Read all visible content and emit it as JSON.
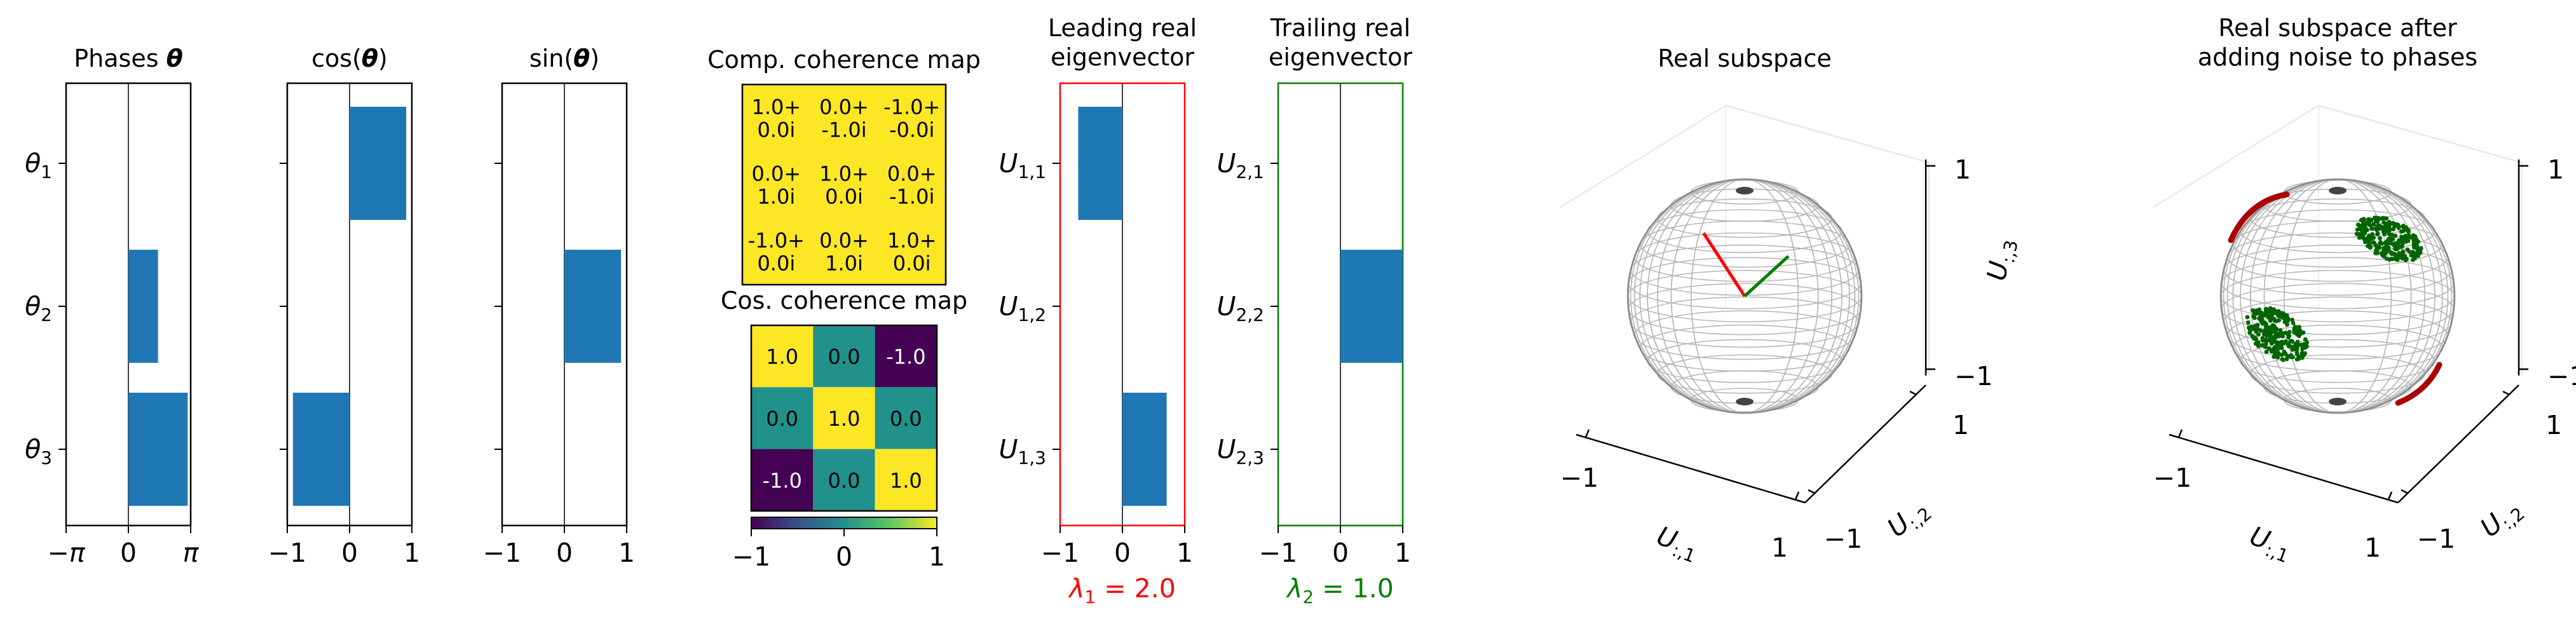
{
  "chart_data": [
    {
      "type": "bar",
      "orientation": "horizontal",
      "title": "Phases θ",
      "categories": [
        "θ1",
        "θ2",
        "θ3"
      ],
      "values": [
        0,
        1.57,
        3.14
      ],
      "xlim": [
        -3.3,
        3.3
      ],
      "xticks": [
        "−π",
        "0",
        "π"
      ]
    },
    {
      "type": "bar",
      "orientation": "horizontal",
      "title": "cos(θ)",
      "categories": [
        "θ1",
        "θ2",
        "θ3"
      ],
      "values": [
        1.0,
        0.0,
        -1.0
      ],
      "xlim": [
        -1.1,
        1.1
      ],
      "xticks": [
        "−1",
        "0",
        "1"
      ]
    },
    {
      "type": "bar",
      "orientation": "horizontal",
      "title": "sin(θ)",
      "categories": [
        "θ1",
        "θ2",
        "θ3"
      ],
      "values": [
        0.0,
        1.0,
        0.0
      ],
      "xlim": [
        -1.1,
        1.1
      ],
      "xticks": [
        "−1",
        "0",
        "1"
      ]
    },
    {
      "type": "table",
      "title": "Comp. coherence map",
      "cells": [
        [
          "1.0+\n0.0i",
          "0.0+\n-1.0i",
          "-1.0+\n-0.0i"
        ],
        [
          "0.0+\n1.0i",
          "1.0+\n0.0i",
          "0.0+\n-1.0i"
        ],
        [
          "-1.0+\n0.0i",
          "0.0+\n1.0i",
          "1.0+\n0.0i"
        ]
      ],
      "cell_color": "#fde725"
    },
    {
      "type": "heatmap",
      "title": "Cos. coherence map",
      "values": [
        [
          1.0,
          0.0,
          -1.0
        ],
        [
          0.0,
          1.0,
          0.0
        ],
        [
          -1.0,
          0.0,
          1.0
        ]
      ],
      "labels": [
        [
          "1.0",
          "0.0",
          "-1.0"
        ],
        [
          "0.0",
          "1.0",
          "0.0"
        ],
        [
          "-1.0",
          "0.0",
          "1.0"
        ]
      ],
      "colorbar": {
        "range": [
          -1,
          1
        ],
        "ticks": [
          "−1",
          "0",
          "1"
        ]
      }
    },
    {
      "type": "bar",
      "orientation": "horizontal",
      "title": "Leading real\neigenvector",
      "categories": [
        "U1,1",
        "U1,2",
        "U1,3"
      ],
      "values": [
        -0.71,
        0.0,
        0.71
      ],
      "xlim": [
        -1.0,
        1.0
      ],
      "xticks": [
        "−1",
        "0",
        "1"
      ],
      "frame_color": "#ff0000",
      "caption": "λ1 = 2.0"
    },
    {
      "type": "bar",
      "orientation": "horizontal",
      "title": "Trailing real\neigenvector",
      "categories": [
        "U2,1",
        "U2,2",
        "U2,3"
      ],
      "values": [
        0.0,
        1.0,
        0.0
      ],
      "xlim": [
        -1.0,
        1.0
      ],
      "xticks": [
        "−1",
        "0",
        "1"
      ],
      "frame_color": "#008000",
      "caption": "λ2 = 1.0"
    },
    {
      "type": "scatter",
      "title": "Real subspace",
      "axes": {
        "x": "U:,1",
        "y": "U:,2",
        "z": "U:,3"
      },
      "ticks": [
        "−1",
        "1"
      ],
      "vectors": [
        {
          "color": "#ff0000",
          "from": [
            0,
            0,
            0
          ],
          "to": [
            -0.71,
            0,
            0.71
          ]
        },
        {
          "color": "#008000",
          "from": [
            0,
            0,
            0
          ],
          "to": [
            0,
            1,
            0
          ]
        }
      ]
    },
    {
      "type": "scatter",
      "title": "Real subspace after\nadding noise to phases",
      "axes": {
        "x": "U:,1",
        "y": "U:,2",
        "z": "U:,3"
      },
      "ticks": [
        "−1",
        "1"
      ],
      "point_groups": [
        {
          "color": "#006400",
          "center": [
            0,
            1,
            0
          ],
          "spread": "small"
        },
        {
          "color": "#006400",
          "center": [
            0,
            -1,
            0
          ],
          "spread": "small"
        }
      ],
      "arc_groups": [
        {
          "color": "#aa0000",
          "center": [
            -0.71,
            0,
            0.71
          ]
        },
        {
          "color": "#aa0000",
          "center": [
            0.71,
            0,
            -0.71
          ]
        }
      ]
    }
  ],
  "colors": {
    "bar": "#1f77b4",
    "frame": "#000000",
    "yellow": "#fde725",
    "teal": "#21918c",
    "purple": "#440154",
    "red": "#ff0000",
    "green": "#008000",
    "darkred": "#aa0000",
    "darkgreen": "#006400"
  }
}
